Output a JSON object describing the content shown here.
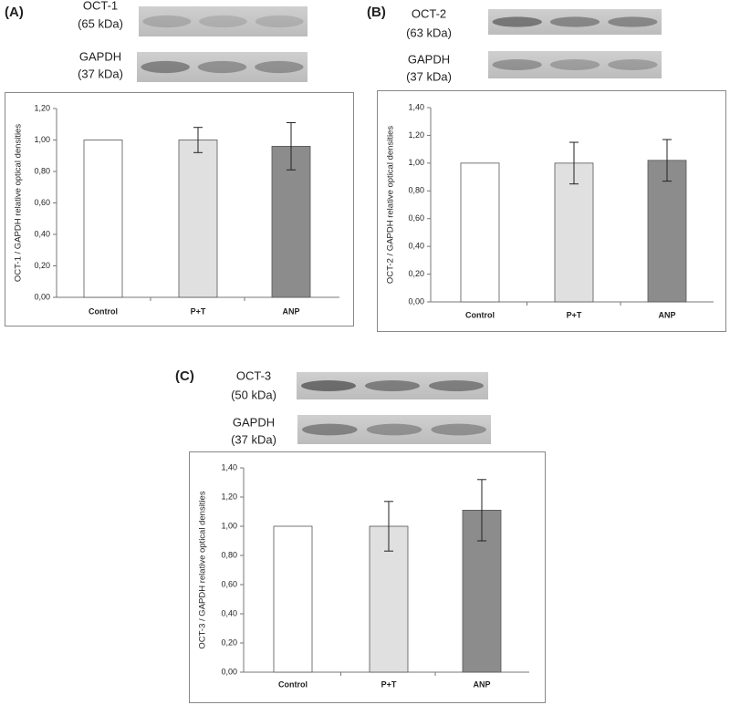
{
  "chart_data": [
    {
      "type": "bar",
      "panel": "(A)",
      "blots": [
        {
          "label": "OCT-1",
          "size": "(65 kDa)"
        },
        {
          "label": "GAPDH",
          "size": "(37 kDa)"
        }
      ],
      "y_label": "OCT-1 / GAPDH relative optical densities",
      "categories": [
        "Control",
        "P+T",
        "ANP"
      ],
      "values": [
        1.0,
        1.0,
        0.96
      ],
      "errors": [
        null,
        0.08,
        0.15
      ],
      "colors": [
        "#ffffff",
        "#e0e0e0",
        "#8c8c8c"
      ],
      "ylim": [
        0,
        1.2
      ],
      "yticks": [
        {
          "value": 0,
          "label": "0,00"
        },
        {
          "value": 0.2,
          "label": "0,20"
        },
        {
          "value": 0.4,
          "label": "0,40"
        },
        {
          "value": 0.6,
          "label": "0,60"
        },
        {
          "value": 0.8,
          "label": "0,80"
        },
        {
          "value": 1.0,
          "label": "1,00"
        },
        {
          "value": 1.2,
          "label": "1,20"
        }
      ]
    },
    {
      "type": "bar",
      "panel": "(B)",
      "blots": [
        {
          "label": "OCT-2",
          "size": "(63 kDa)"
        },
        {
          "label": "GAPDH",
          "size": "(37 kDa)"
        }
      ],
      "y_label": "OCT-2 / GAPDH relative optical densities",
      "categories": [
        "Control",
        "P+T",
        "ANP"
      ],
      "values": [
        1.0,
        1.0,
        1.02
      ],
      "errors": [
        null,
        0.15,
        0.15
      ],
      "colors": [
        "#ffffff",
        "#e0e0e0",
        "#8c8c8c"
      ],
      "ylim": [
        0,
        1.4
      ],
      "yticks": [
        {
          "value": 0,
          "label": "0,00"
        },
        {
          "value": 0.2,
          "label": "0,20"
        },
        {
          "value": 0.4,
          "label": "0,40"
        },
        {
          "value": 0.6,
          "label": "0,60"
        },
        {
          "value": 0.8,
          "label": "0,80"
        },
        {
          "value": 1.0,
          "label": "1,00"
        },
        {
          "value": 1.2,
          "label": "1,20"
        },
        {
          "value": 1.4,
          "label": "1,40"
        }
      ]
    },
    {
      "type": "bar",
      "panel": "(C)",
      "blots": [
        {
          "label": "OCT-3",
          "size": "(50 kDa)"
        },
        {
          "label": "GAPDH",
          "size": "(37 kDa)"
        }
      ],
      "y_label": "OCT-3 / GAPDH relative optical densities",
      "categories": [
        "Control",
        "P+T",
        "ANP"
      ],
      "values": [
        1.0,
        1.0,
        1.11
      ],
      "errors": [
        null,
        0.17,
        0.21
      ],
      "colors": [
        "#ffffff",
        "#e0e0e0",
        "#8c8c8c"
      ],
      "ylim": [
        0,
        1.4
      ],
      "yticks": [
        {
          "value": 0,
          "label": "0,00"
        },
        {
          "value": 0.2,
          "label": "0,20"
        },
        {
          "value": 0.4,
          "label": "0,40"
        },
        {
          "value": 0.6,
          "label": "0,60"
        },
        {
          "value": 0.8,
          "label": "0,80"
        },
        {
          "value": 1.0,
          "label": "1,00"
        },
        {
          "value": 1.2,
          "label": "1,20"
        },
        {
          "value": 1.4,
          "label": "1,40"
        }
      ]
    }
  ]
}
